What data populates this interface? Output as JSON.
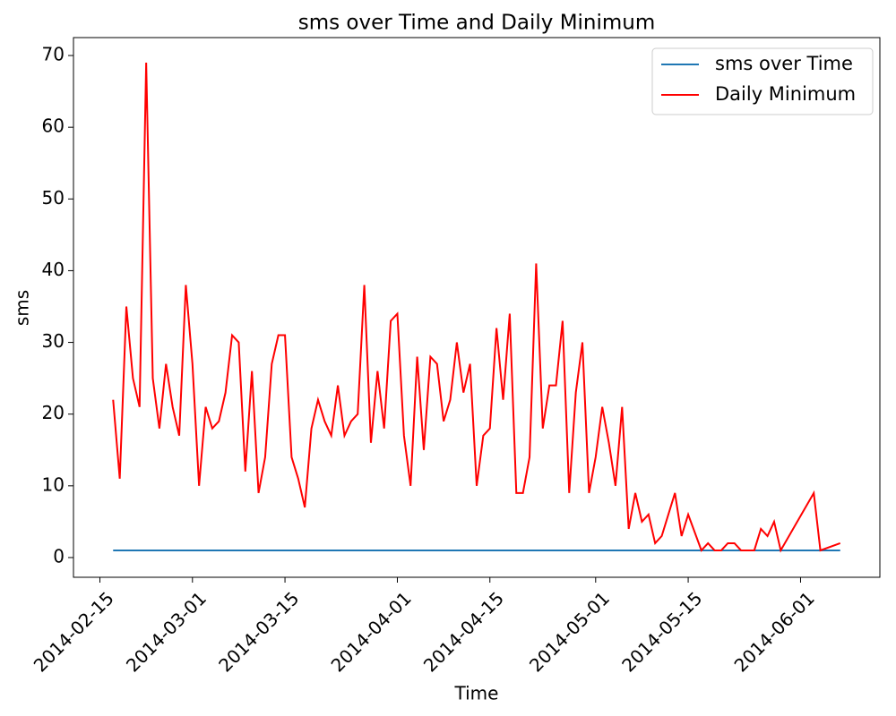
{
  "chart_data": {
    "type": "line",
    "title": "sms over Time and Daily Minimum",
    "x_label": "Time",
    "y_label": "sms",
    "xlim": [
      "2014-02-11",
      "2014-06-13"
    ],
    "xticks": [
      "2014-02-15",
      "2014-03-01",
      "2014-03-15",
      "2014-04-01",
      "2014-04-15",
      "2014-05-01",
      "2014-05-15",
      "2014-06-01"
    ],
    "ylim": [
      -2.75,
      72.5
    ],
    "yticks": [
      0,
      10,
      20,
      30,
      40,
      50,
      60,
      70
    ],
    "grid": false,
    "legend": "upper right",
    "series": [
      {
        "name": "sms over Time",
        "color": "#1f77b4",
        "x": [
          "2014-02-17",
          "2014-06-07"
        ],
        "values": [
          1,
          1
        ]
      },
      {
        "name": "Daily Minimum",
        "color": "#ff0000",
        "x": [
          "2014-02-17",
          "2014-02-18",
          "2014-02-19",
          "2014-02-20",
          "2014-02-21",
          "2014-02-22",
          "2014-02-23",
          "2014-02-24",
          "2014-02-25",
          "2014-02-26",
          "2014-02-27",
          "2014-02-28",
          "2014-03-01",
          "2014-03-02",
          "2014-03-03",
          "2014-03-04",
          "2014-03-05",
          "2014-03-06",
          "2014-03-07",
          "2014-03-08",
          "2014-03-09",
          "2014-03-10",
          "2014-03-11",
          "2014-03-12",
          "2014-03-13",
          "2014-03-14",
          "2014-03-15",
          "2014-03-16",
          "2014-03-17",
          "2014-03-18",
          "2014-03-19",
          "2014-03-20",
          "2014-03-21",
          "2014-03-22",
          "2014-03-23",
          "2014-03-24",
          "2014-03-25",
          "2014-03-26",
          "2014-03-27",
          "2014-03-28",
          "2014-03-29",
          "2014-03-30",
          "2014-03-31",
          "2014-04-01",
          "2014-04-02",
          "2014-04-03",
          "2014-04-04",
          "2014-04-05",
          "2014-04-06",
          "2014-04-07",
          "2014-04-08",
          "2014-04-09",
          "2014-04-10",
          "2014-04-11",
          "2014-04-12",
          "2014-04-13",
          "2014-04-14",
          "2014-04-15",
          "2014-04-16",
          "2014-04-17",
          "2014-04-18",
          "2014-04-19",
          "2014-04-20",
          "2014-04-21",
          "2014-04-22",
          "2014-04-23",
          "2014-04-24",
          "2014-04-25",
          "2014-04-26",
          "2014-04-27",
          "2014-04-28",
          "2014-04-29",
          "2014-04-30",
          "2014-05-01",
          "2014-05-02",
          "2014-05-03",
          "2014-05-04",
          "2014-05-05",
          "2014-05-06",
          "2014-05-07",
          "2014-05-08",
          "2014-05-09",
          "2014-05-10",
          "2014-05-11",
          "2014-05-13",
          "2014-05-14",
          "2014-05-15",
          "2014-05-17",
          "2014-05-18",
          "2014-05-19",
          "2014-05-20",
          "2014-05-21",
          "2014-05-22",
          "2014-05-23",
          "2014-05-24",
          "2014-05-25",
          "2014-05-26",
          "2014-05-27",
          "2014-05-28",
          "2014-05-29",
          "2014-06-03",
          "2014-06-04",
          "2014-06-07"
        ],
        "values": [
          22,
          11,
          35,
          25,
          21,
          69,
          25,
          18,
          27,
          21,
          17,
          38,
          27,
          10,
          21,
          18,
          19,
          23,
          31,
          30,
          12,
          26,
          9,
          14,
          27,
          31,
          31,
          14,
          11,
          7,
          18,
          22,
          19,
          17,
          24,
          17,
          19,
          20,
          38,
          16,
          26,
          18,
          33,
          34,
          17,
          10,
          28,
          15,
          28,
          27,
          19,
          22,
          30,
          23,
          27,
          10,
          17,
          18,
          32,
          22,
          34,
          9,
          9,
          14,
          41,
          18,
          24,
          24,
          33,
          9,
          23,
          30,
          9,
          14,
          21,
          16,
          10,
          21,
          4,
          9,
          5,
          6,
          2,
          3,
          9,
          3,
          6,
          1,
          2,
          1,
          1,
          2,
          2,
          1,
          1,
          1,
          4,
          3,
          5,
          1,
          9,
          1,
          2
        ]
      }
    ]
  }
}
